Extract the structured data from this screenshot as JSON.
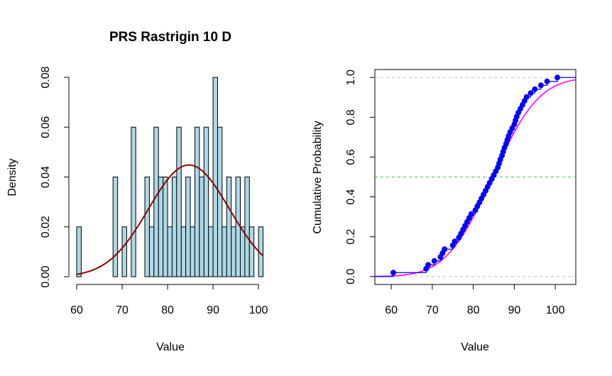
{
  "chart_data": [
    {
      "type": "histogram",
      "title": "PRS Rastrigin 10 D",
      "xlabel": "Value",
      "ylabel": "Density",
      "xlim": [
        60,
        101
      ],
      "ylim": [
        0,
        0.08
      ],
      "x_ticks": [
        "60",
        "70",
        "80",
        "90",
        "100"
      ],
      "y_ticks": [
        "0.00",
        "0.02",
        "0.04",
        "0.06",
        "0.08"
      ],
      "bin_width": 1,
      "bins": [
        {
          "x0": 60,
          "density": 0.02
        },
        {
          "x0": 68,
          "density": 0.04
        },
        {
          "x0": 70,
          "density": 0.02
        },
        {
          "x0": 72,
          "density": 0.06
        },
        {
          "x0": 75,
          "density": 0.04
        },
        {
          "x0": 76,
          "density": 0.02
        },
        {
          "x0": 77,
          "density": 0.06
        },
        {
          "x0": 78,
          "density": 0.04
        },
        {
          "x0": 79,
          "density": 0.04
        },
        {
          "x0": 80,
          "density": 0.02
        },
        {
          "x0": 81,
          "density": 0.04
        },
        {
          "x0": 82,
          "density": 0.06
        },
        {
          "x0": 83,
          "density": 0.02
        },
        {
          "x0": 84,
          "density": 0.04
        },
        {
          "x0": 85,
          "density": 0.02
        },
        {
          "x0": 86,
          "density": 0.06
        },
        {
          "x0": 87,
          "density": 0.04
        },
        {
          "x0": 88,
          "density": 0.06
        },
        {
          "x0": 89,
          "density": 0.02
        },
        {
          "x0": 90,
          "density": 0.08
        },
        {
          "x0": 91,
          "density": 0.06
        },
        {
          "x0": 92,
          "density": 0.02
        },
        {
          "x0": 93,
          "density": 0.04
        },
        {
          "x0": 94,
          "density": 0.02
        },
        {
          "x0": 95,
          "density": 0.04
        },
        {
          "x0": 96,
          "density": 0.02
        },
        {
          "x0": 97,
          "density": 0.04
        },
        {
          "x0": 98,
          "density": 0.02
        },
        {
          "x0": 100,
          "density": 0.02
        }
      ],
      "normal_curve": {
        "mean": 84.7,
        "sd": 8.9
      },
      "colors": {
        "bars": "#add8e6",
        "bar_border": "#000000",
        "curve": "#8b0000"
      }
    },
    {
      "type": "ecdf",
      "title": "",
      "xlabel": "Value",
      "ylabel": "Cumulative Probability",
      "xlim": [
        56,
        105
      ],
      "ylim": [
        -0.04,
        1.04
      ],
      "x_ticks": [
        "60",
        "70",
        "80",
        "90",
        "100"
      ],
      "y_ticks": [
        "0.0",
        "0.2",
        "0.4",
        "0.6",
        "0.8",
        "1.0"
      ],
      "sample_values": [
        60.5,
        68.5,
        69.0,
        70.5,
        72.0,
        72.5,
        73.0,
        75.0,
        75.5,
        76.5,
        77.0,
        77.5,
        78.0,
        78.5,
        79.0,
        79.5,
        80.5,
        81.0,
        81.5,
        82.0,
        82.5,
        83.0,
        83.5,
        84.0,
        84.5,
        85.0,
        85.5,
        86.0,
        86.3,
        86.6,
        87.0,
        87.3,
        87.6,
        88.0,
        88.3,
        88.6,
        89.0,
        89.5,
        90.0,
        90.3,
        90.6,
        91.0,
        91.5,
        92.0,
        92.5,
        93.0,
        94.0,
        95.0,
        96.5,
        98.0,
        100.5
      ],
      "theoretical": {
        "mean": 84.7,
        "sd": 8.9
      },
      "reference_lines": [
        {
          "y": 0,
          "color": "#bebebe"
        },
        {
          "y": 0.5,
          "color": "#32cd32"
        },
        {
          "y": 1,
          "color": "#bebebe"
        }
      ],
      "colors": {
        "points": "#0000ff",
        "step": "#0000ff",
        "theoretical": "#ff00ff"
      }
    }
  ]
}
